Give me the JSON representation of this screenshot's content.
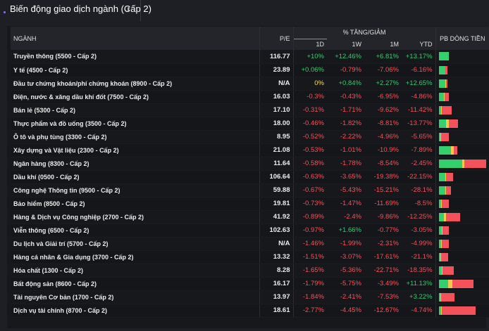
{
  "tab": {
    "title": "Biến động giao dịch ngành (Cấp 2)",
    "caret": "⬍"
  },
  "header": {
    "industry": "NGÀNH",
    "pe": "P/E",
    "pct_group": "% TĂNG/GIẢM",
    "d1": "1D",
    "w1": "1W",
    "m1": "1M",
    "ytd": "YTD",
    "flow": "PB DÒNG TIỀN"
  },
  "colors": {
    "up": "#2ecf6a",
    "down": "#f4525a",
    "flat": "#f2e04a",
    "accent": "#8a7cff"
  },
  "rows": [
    {
      "name": "Truyền thông (5500 - Cấp 2)",
      "pe": "116.77",
      "d1": "+10%",
      "w1": "+12.46%",
      "m1": "+6.81%",
      "ytd": "+13.17%",
      "flow": [
        0.2,
        0,
        0
      ]
    },
    {
      "name": "Y tế (4500 - Cấp 2)",
      "pe": "23.89",
      "d1": "+0.06%",
      "w1": "-0.79%",
      "m1": "-7.06%",
      "ytd": "-6.16%",
      "flow": [
        0.12,
        0,
        0.04
      ]
    },
    {
      "name": "Đầu tư chứng khoán/phí chứng khoán (8900 - Cấp 2)",
      "pe": "N/A",
      "d1": "0%",
      "w1": "+0.84%",
      "m1": "+2.27%",
      "ytd": "+12.65%",
      "flow": [
        0.13,
        0.02,
        0.03
      ]
    },
    {
      "name": "Điện, nước & xăng dầu khí đốt (7500 - Cấp 2)",
      "pe": "16.03",
      "d1": "-0.3%",
      "w1": "-0.43%",
      "m1": "-6.95%",
      "ytd": "-4.86%",
      "flow": [
        0.1,
        0.02,
        0.08
      ]
    },
    {
      "name": "Bán lẻ (5300 - Cấp 2)",
      "pe": "17.10",
      "d1": "-0.31%",
      "w1": "-1.71%",
      "m1": "-9.62%",
      "ytd": "-11.42%",
      "flow": [
        0.04,
        0.02,
        0.2
      ]
    },
    {
      "name": "Thực phẩm và đồ uống (3500 - Cấp 2)",
      "pe": "18.00",
      "d1": "-0.46%",
      "w1": "-1.82%",
      "m1": "-8.81%",
      "ytd": "-13.77%",
      "flow": [
        0.14,
        0.06,
        0.18
      ]
    },
    {
      "name": "Ô tô và phụ tùng (3300 - Cấp 2)",
      "pe": "8.95",
      "d1": "-0.52%",
      "w1": "-2.22%",
      "m1": "-4.96%",
      "ytd": "-5.65%",
      "flow": [
        0.03,
        0.02,
        0.15
      ]
    },
    {
      "name": "Xây dựng và Vật liệu (2300 - Cấp 2)",
      "pe": "21.08",
      "d1": "-0.53%",
      "w1": "-1.01%",
      "m1": "-10.9%",
      "ytd": "-7.89%",
      "flow": [
        0.24,
        0.05,
        0.07
      ]
    },
    {
      "name": "Ngân hàng (8300 - Cấp 2)",
      "pe": "11.64",
      "d1": "-0.58%",
      "w1": "-1.78%",
      "m1": "-8.54%",
      "ytd": "-2.45%",
      "flow": [
        0.5,
        0.04,
        0.46
      ]
    },
    {
      "name": "Dầu khí (0500 - Cấp 2)",
      "pe": "106.64",
      "d1": "-0.63%",
      "w1": "-3.65%",
      "m1": "-19.38%",
      "ytd": "-22.15%",
      "flow": [
        0.12,
        0.02,
        0.14
      ]
    },
    {
      "name": "Công nghệ Thông tin (9500 - Cấp 2)",
      "pe": "59.88",
      "d1": "-0.67%",
      "w1": "-5.43%",
      "m1": "-15.21%",
      "ytd": "-28.1%",
      "flow": [
        0.12,
        0.02,
        0.1
      ]
    },
    {
      "name": "Bảo hiểm (8500 - Cấp 2)",
      "pe": "19.81",
      "d1": "-0.73%",
      "w1": "-1.47%",
      "m1": "-11.69%",
      "ytd": "-8.5%",
      "flow": [
        0.04,
        0.02,
        0.14
      ]
    },
    {
      "name": "Hàng & Dịch vụ Công nghiệp (2700 - Cấp 2)",
      "pe": "41.92",
      "d1": "-0.89%",
      "w1": "-2.4%",
      "m1": "-9.86%",
      "ytd": "-12.25%",
      "flow": [
        0.1,
        0.04,
        0.28
      ]
    },
    {
      "name": "Viễn thông (6500 - Cấp 2)",
      "pe": "102.63",
      "d1": "-0.97%",
      "w1": "+1.66%",
      "m1": "-0.77%",
      "ytd": "-3.05%",
      "flow": [
        0.05,
        0.02,
        0.12
      ]
    },
    {
      "name": "Du lịch và Giải trí (5700 - Cấp 2)",
      "pe": "N/A",
      "d1": "-1.46%",
      "w1": "-1.99%",
      "m1": "-2.31%",
      "ytd": "-4.99%",
      "flow": [
        0.04,
        0.02,
        0.14
      ]
    },
    {
      "name": "Hàng cá nhân & Gia dụng (3700 - Cấp 2)",
      "pe": "13.32",
      "d1": "-1.51%",
      "w1": "-3.07%",
      "m1": "-17.61%",
      "ytd": "-21.1%",
      "flow": [
        0.03,
        0.02,
        0.14
      ]
    },
    {
      "name": "Hóa chất (1300 - Cấp 2)",
      "pe": "8.28",
      "d1": "-1.65%",
      "w1": "-5.36%",
      "m1": "-22.71%",
      "ytd": "-18.35%",
      "flow": [
        0.06,
        0.02,
        0.22
      ]
    },
    {
      "name": "Bất động sản (8600 - Cấp 2)",
      "pe": "16.17",
      "d1": "-1.79%",
      "w1": "-5.75%",
      "m1": "-3.49%",
      "ytd": "+11.13%",
      "flow": [
        0.18,
        0.08,
        0.42
      ]
    },
    {
      "name": "Tài nguyên Cơ bản (1700 - Cấp 2)",
      "pe": "13.97",
      "d1": "-1.84%",
      "w1": "-2.41%",
      "m1": "-7.53%",
      "ytd": "+3.22%",
      "flow": [
        0.03,
        0.02,
        0.26
      ]
    },
    {
      "name": "Dịch vụ tài chính (8700 - Cấp 2)",
      "pe": "18.61",
      "d1": "-2.77%",
      "w1": "-4.45%",
      "m1": "-12.67%",
      "ytd": "-4.74%",
      "flow": [
        0.04,
        0.02,
        0.66
      ]
    }
  ]
}
